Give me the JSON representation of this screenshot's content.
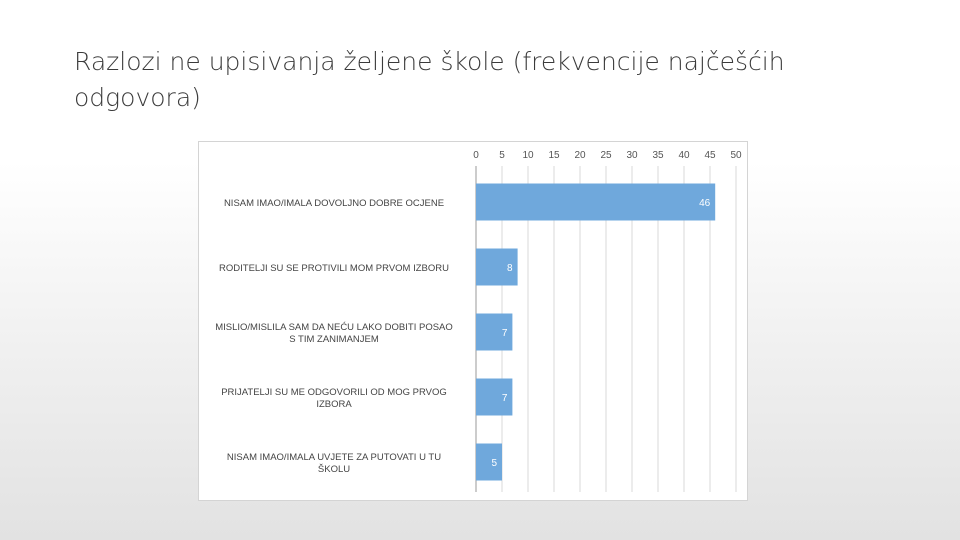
{
  "slide": {
    "title": "Razlozi ne upisivanja željene škole (frekvencije najčešćih odgovora)"
  },
  "colors": {
    "bar": "#6fa8dc",
    "gridline": "#d9d9d9",
    "axis": "#999999"
  },
  "chart_data": {
    "type": "bar",
    "orientation": "horizontal",
    "xaxis_position": "top",
    "grid": true,
    "legend": "none",
    "xlim": [
      0,
      50
    ],
    "ticks": [
      0,
      5,
      10,
      15,
      20,
      25,
      30,
      35,
      40,
      45,
      50
    ],
    "categories": [
      "NISAM IMAO/IMALA DOVOLJNO DOBRE OCJENE",
      "RODITELJI SU SE PROTIVILI MOM PRVOM IZBORU",
      "MISLIO/MISLILA SAM DA NEĆU LAKO DOBITI POSAO S TIM ZANIMANJEM",
      "PRIJATELJI SU ME ODGOVORILI OD MOG PRVOG IZBORA",
      "NISAM IMAO/IMALA UVJETE ZA PUTOVATI U TU ŠKOLU"
    ],
    "values": [
      46,
      8,
      7,
      7,
      5
    ]
  }
}
